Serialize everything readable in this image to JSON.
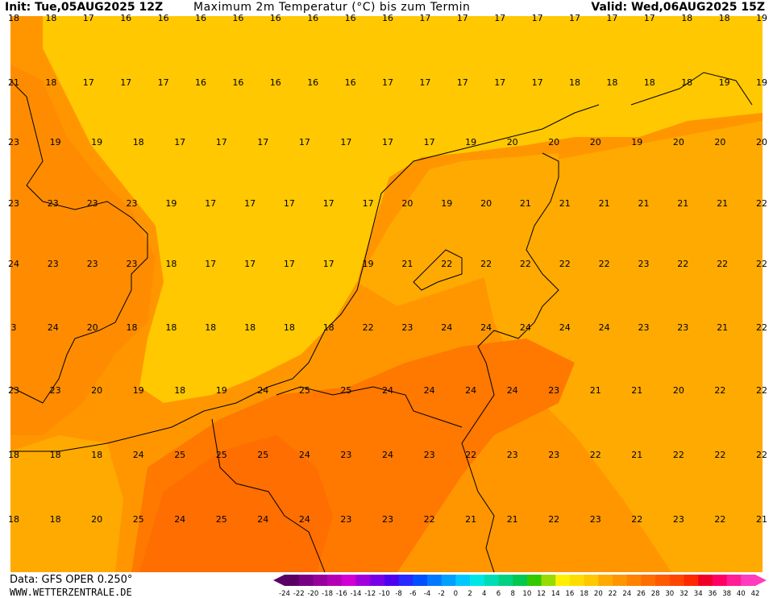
{
  "header": {
    "init": "Init: Tue,05AUG2025 12Z",
    "title": "Maximum 2m Temperatur (°C) bis zum Termin",
    "valid": "Valid: Wed,06AUG2025 15Z"
  },
  "footer": {
    "source": "Data: GFS OPER 0.250°",
    "site": "WWW.WETTERZENTRALE.DE"
  },
  "colors": {
    "sea_yellow": "#ffc800",
    "warm_light": "#ffaa00",
    "warm_mid": "#ff9600",
    "warm_dark": "#ff7800",
    "warm_darker": "#ff6400",
    "coast": "#000000"
  },
  "colorbar": {
    "ticks": [
      "-24",
      "-22",
      "-20",
      "-18",
      "-16",
      "-14",
      "-12",
      "-10",
      "-8",
      "-6",
      "-4",
      "-2",
      "0",
      "2",
      "4",
      "6",
      "8",
      "10",
      "12",
      "14",
      "16",
      "18",
      "20",
      "22",
      "24",
      "26",
      "28",
      "30",
      "32",
      "34",
      "36",
      "38",
      "40",
      "42"
    ],
    "colors": [
      "#5a0064",
      "#780082",
      "#96009b",
      "#b400b4",
      "#d200d2",
      "#a000dc",
      "#7800e6",
      "#5000f0",
      "#2828ff",
      "#0050ff",
      "#0078ff",
      "#00a0ff",
      "#00c8ff",
      "#00e6e6",
      "#00dcb4",
      "#00d282",
      "#00c850",
      "#32c800",
      "#96dc00",
      "#fff000",
      "#ffdc00",
      "#ffc800",
      "#ffaa00",
      "#ff9600",
      "#ff8200",
      "#ff6e00",
      "#ff5a00",
      "#ff4600",
      "#ff2800",
      "#f00028",
      "#ff0064",
      "#ff1e96",
      "#ff3cbe"
    ]
  },
  "rows": [
    [
      "18",
      "18",
      "17",
      "16",
      "16",
      "16",
      "16",
      "16",
      "16",
      "16",
      "16",
      "17",
      "17",
      "17",
      "17",
      "17",
      "17",
      "17",
      "18",
      "18",
      "19"
    ],
    [
      "21",
      "18",
      "17",
      "17",
      "17",
      "16",
      "16",
      "16",
      "16",
      "16",
      "17",
      "17",
      "17",
      "17",
      "17",
      "18",
      "18",
      "18",
      "18",
      "19",
      "19"
    ],
    [
      "23",
      "19",
      "19",
      "18",
      "17",
      "17",
      "17",
      "17",
      "17",
      "17",
      "17",
      "19",
      "20",
      "20",
      "20",
      "19",
      "20",
      "20",
      "20"
    ],
    [
      "23",
      "23",
      "23",
      "23",
      "19",
      "17",
      "17",
      "17",
      "17",
      "17",
      "20",
      "19",
      "20",
      "21",
      "21",
      "21",
      "21",
      "21",
      "21",
      "22"
    ],
    [
      "24",
      "23",
      "23",
      "23",
      "18",
      "17",
      "17",
      "17",
      "17",
      "19",
      "21",
      "22",
      "22",
      "22",
      "22",
      "22",
      "23",
      "22",
      "22",
      "22"
    ],
    [
      "3",
      "24",
      "20",
      "18",
      "18",
      "18",
      "18",
      "18",
      "18",
      "22",
      "23",
      "24",
      "24",
      "24",
      "24",
      "24",
      "23",
      "23",
      "21",
      "22"
    ],
    [
      "23",
      "23",
      "20",
      "19",
      "18",
      "19",
      "24",
      "25",
      "25",
      "24",
      "24",
      "24",
      "24",
      "23",
      "21",
      "21",
      "20",
      "22",
      "22"
    ],
    [
      "18",
      "18",
      "18",
      "24",
      "25",
      "25",
      "25",
      "24",
      "23",
      "24",
      "23",
      "22",
      "23",
      "23",
      "22",
      "21",
      "22",
      "22",
      "22"
    ],
    [
      "18",
      "18",
      "20",
      "25",
      "24",
      "25",
      "24",
      "24",
      "23",
      "23",
      "22",
      "21",
      "21",
      "22",
      "23",
      "22",
      "23",
      "22",
      "21"
    ]
  ]
}
